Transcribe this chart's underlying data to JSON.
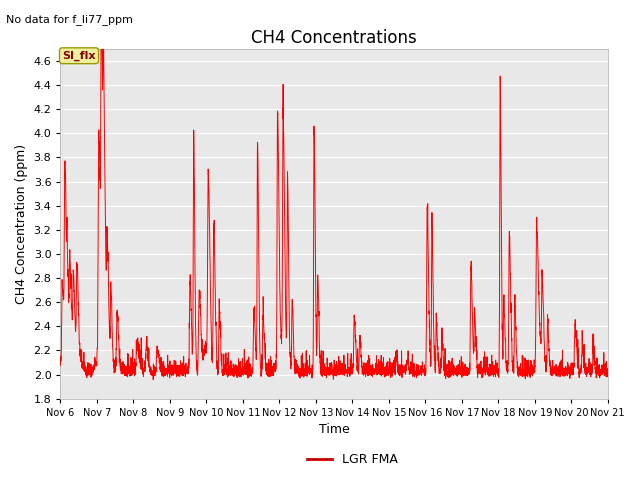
{
  "title": "CH4 Concentrations",
  "top_left_note": "No data for f_li77_ppm",
  "xlabel": "Time",
  "ylabel": "CH4 Concentration (ppm)",
  "ylim": [
    1.8,
    4.7
  ],
  "yticks": [
    1.8,
    2.0,
    2.2,
    2.4,
    2.6,
    2.8,
    3.0,
    3.2,
    3.4,
    3.6,
    3.8,
    4.0,
    4.2,
    4.4,
    4.6
  ],
  "xtick_labels": [
    "Nov 6",
    "Nov 7",
    "Nov 8",
    "Nov 9",
    "Nov 10",
    "Nov 11",
    "Nov 12",
    "Nov 13",
    "Nov 14",
    "Nov 15",
    "Nov 16",
    "Nov 17",
    "Nov 18",
    "Nov 19",
    "Nov 20",
    "Nov 21"
  ],
  "line_color": "#ff0000",
  "line_width": 0.7,
  "legend_label": "LGR FMA",
  "legend_line_color": "#cc0000",
  "annotation_label": "SI_flx",
  "bg_color": "#ffffff",
  "plot_bg_color": "#e8e8e8",
  "grid_color": "#ffffff",
  "title_fontsize": 12,
  "axis_fontsize": 9,
  "tick_fontsize": 8,
  "note_fontsize": 8
}
